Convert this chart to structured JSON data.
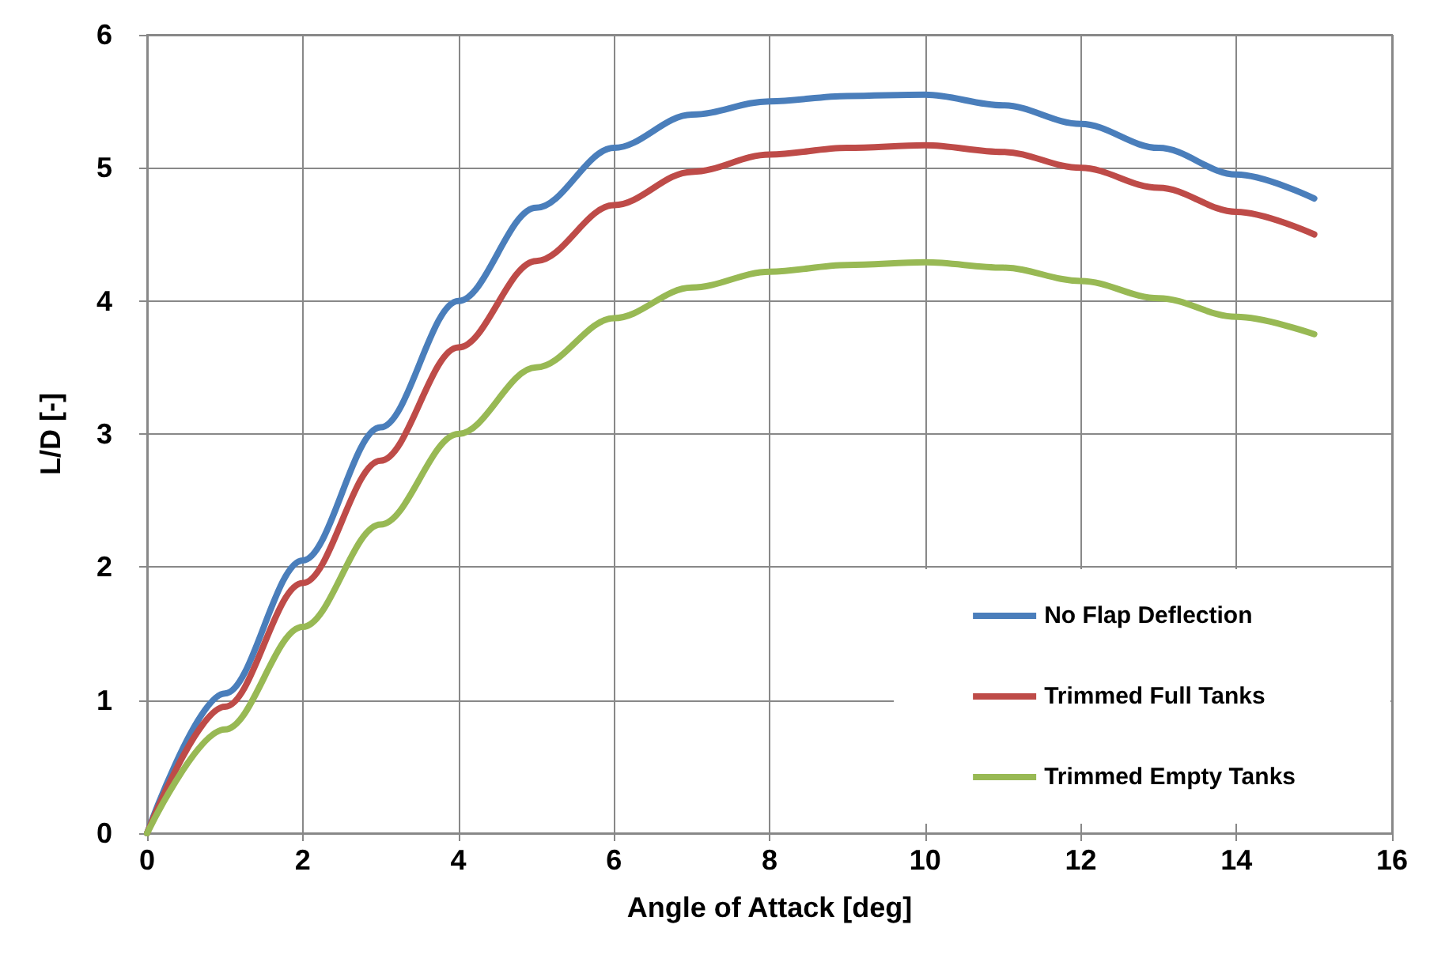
{
  "chart_data": {
    "type": "line",
    "xlabel": "Angle of Attack [deg]",
    "ylabel": "L/D [-]",
    "x": [
      0,
      1,
      2,
      3,
      4,
      5,
      6,
      7,
      8,
      9,
      10,
      11,
      12,
      13,
      14,
      15
    ],
    "series": [
      {
        "name": "No Flap Deflection",
        "color": "#4a7ebb",
        "values": [
          0,
          1.05,
          2.05,
          3.05,
          4.0,
          4.7,
          5.15,
          5.4,
          5.5,
          5.54,
          5.55,
          5.47,
          5.33,
          5.15,
          4.95,
          4.77
        ]
      },
      {
        "name": "Trimmed Full Tanks",
        "color": "#be4b48",
        "values": [
          0,
          0.95,
          1.88,
          2.8,
          3.65,
          4.3,
          4.72,
          4.97,
          5.1,
          5.15,
          5.17,
          5.12,
          5.0,
          4.85,
          4.67,
          4.5
        ]
      },
      {
        "name": "Trimmed Empty Tanks",
        "color": "#98b954",
        "values": [
          0,
          0.78,
          1.55,
          2.32,
          3.0,
          3.5,
          3.87,
          4.1,
          4.22,
          4.27,
          4.29,
          4.25,
          4.15,
          4.02,
          3.88,
          3.75
        ]
      }
    ],
    "xlim": [
      0,
      16
    ],
    "xticks": [
      0,
      2,
      4,
      6,
      8,
      10,
      12,
      14,
      16
    ],
    "ylim": [
      0,
      6
    ],
    "yticks": [
      0,
      1,
      2,
      3,
      4,
      5,
      6
    ],
    "grid": true,
    "legend": "bottom right",
    "marker": "none",
    "line_style": "solid"
  }
}
